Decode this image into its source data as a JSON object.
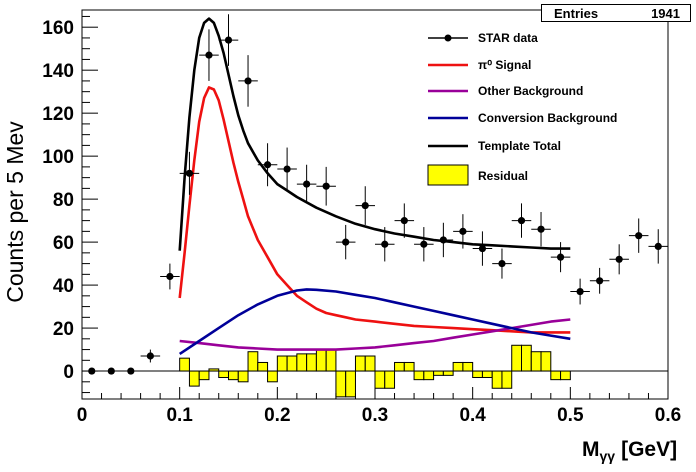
{
  "chart_data": {
    "type": "scatter",
    "title": "",
    "xlabel": "M",
    "xlabel_sub": "γγ",
    "xlabel_unit": "[GeV]",
    "ylabel": "Counts per 5 Mev",
    "xlim": [
      0,
      0.6
    ],
    "ylim": [
      -13,
      168
    ],
    "x_ticks": [
      0,
      0.1,
      0.2,
      0.3,
      0.4,
      0.5,
      0.6
    ],
    "x_tick_labels": [
      "0",
      "0.1",
      "0.2",
      "0.3",
      "0.4",
      "0.5",
      "0.6"
    ],
    "y_ticks": [
      0,
      20,
      40,
      60,
      80,
      100,
      120,
      140,
      160
    ],
    "y_tick_labels": [
      "0",
      "20",
      "40",
      "60",
      "80",
      "100",
      "120",
      "140",
      "160"
    ],
    "stats": {
      "label": "Entries",
      "value": "1941"
    },
    "legend_position": "top-right",
    "legend": [
      {
        "key": "data",
        "label": "STAR data"
      },
      {
        "key": "signal",
        "label": "π⁰ Signal"
      },
      {
        "key": "other",
        "label": "Other Background"
      },
      {
        "key": "conv",
        "label": "Conversion Background"
      },
      {
        "key": "total",
        "label": "Template Total"
      },
      {
        "key": "residual",
        "label": "Residual"
      }
    ],
    "colors": {
      "data": "#000000",
      "signal": "#ee1111",
      "other": "#990099",
      "conv": "#000099",
      "total": "#000000",
      "residual": "#ffff00"
    },
    "data_points": [
      {
        "x": 0.01,
        "y": 0,
        "err": 0
      },
      {
        "x": 0.03,
        "y": 0,
        "err": 0
      },
      {
        "x": 0.05,
        "y": 0,
        "err": 0
      },
      {
        "x": 0.07,
        "y": 7,
        "err": 3
      },
      {
        "x": 0.09,
        "y": 44,
        "err": 6
      },
      {
        "x": 0.11,
        "y": 92,
        "err": 10
      },
      {
        "x": 0.13,
        "y": 147,
        "err": 12
      },
      {
        "x": 0.15,
        "y": 154,
        "err": 12
      },
      {
        "x": 0.17,
        "y": 135,
        "err": 12
      },
      {
        "x": 0.19,
        "y": 96,
        "err": 10
      },
      {
        "x": 0.21,
        "y": 94,
        "err": 10
      },
      {
        "x": 0.23,
        "y": 87,
        "err": 9
      },
      {
        "x": 0.25,
        "y": 86,
        "err": 9
      },
      {
        "x": 0.27,
        "y": 60,
        "err": 8
      },
      {
        "x": 0.29,
        "y": 77,
        "err": 9
      },
      {
        "x": 0.31,
        "y": 59,
        "err": 8
      },
      {
        "x": 0.33,
        "y": 70,
        "err": 8
      },
      {
        "x": 0.35,
        "y": 59,
        "err": 8
      },
      {
        "x": 0.37,
        "y": 61,
        "err": 8
      },
      {
        "x": 0.39,
        "y": 65,
        "err": 8
      },
      {
        "x": 0.41,
        "y": 57,
        "err": 8
      },
      {
        "x": 0.43,
        "y": 50,
        "err": 7
      },
      {
        "x": 0.45,
        "y": 70,
        "err": 8
      },
      {
        "x": 0.47,
        "y": 66,
        "err": 8
      },
      {
        "x": 0.49,
        "y": 53,
        "err": 7
      },
      {
        "x": 0.51,
        "y": 37,
        "err": 6
      },
      {
        "x": 0.53,
        "y": 42,
        "err": 6
      },
      {
        "x": 0.55,
        "y": 52,
        "err": 7
      },
      {
        "x": 0.57,
        "y": 63,
        "err": 8
      },
      {
        "x": 0.59,
        "y": 58,
        "err": 8
      }
    ],
    "series": [
      {
        "key": "signal",
        "x": [
          0.1,
          0.105,
          0.11,
          0.115,
          0.12,
          0.125,
          0.13,
          0.135,
          0.14,
          0.145,
          0.15,
          0.155,
          0.16,
          0.165,
          0.17,
          0.18,
          0.19,
          0.2,
          0.21,
          0.22,
          0.23,
          0.24,
          0.25,
          0.26,
          0.27,
          0.28,
          0.3,
          0.32,
          0.34,
          0.36,
          0.38,
          0.4,
          0.42,
          0.44,
          0.46,
          0.48,
          0.5
        ],
        "y": [
          34,
          55,
          77,
          98,
          116,
          127,
          132,
          131,
          126,
          117,
          107,
          97,
          88,
          80,
          72,
          61,
          53,
          45,
          40,
          35,
          32,
          29,
          27,
          26,
          25,
          24,
          23,
          22,
          21,
          20.5,
          20,
          19.5,
          19,
          18.5,
          18,
          18,
          18
        ]
      },
      {
        "key": "other",
        "x": [
          0.1,
          0.12,
          0.14,
          0.16,
          0.18,
          0.2,
          0.22,
          0.24,
          0.26,
          0.28,
          0.3,
          0.32,
          0.34,
          0.36,
          0.38,
          0.4,
          0.42,
          0.44,
          0.46,
          0.48,
          0.5
        ],
        "y": [
          14,
          13,
          12,
          11,
          10.5,
          10,
          10,
          10,
          10,
          10.5,
          11,
          12,
          13,
          14,
          15.5,
          17,
          18.5,
          20,
          21.5,
          23,
          24
        ]
      },
      {
        "key": "conv",
        "x": [
          0.1,
          0.12,
          0.14,
          0.16,
          0.18,
          0.2,
          0.22,
          0.23,
          0.24,
          0.26,
          0.28,
          0.3,
          0.32,
          0.34,
          0.36,
          0.38,
          0.4,
          0.42,
          0.44,
          0.46,
          0.48,
          0.5
        ],
        "y": [
          8,
          14,
          20,
          26,
          31,
          35,
          37.5,
          38,
          37.8,
          37,
          35.5,
          34,
          32,
          30,
          28,
          26,
          24,
          22,
          20,
          18,
          16.5,
          15
        ]
      },
      {
        "key": "total",
        "x": [
          0.1,
          0.105,
          0.11,
          0.115,
          0.12,
          0.125,
          0.13,
          0.135,
          0.14,
          0.145,
          0.15,
          0.155,
          0.16,
          0.165,
          0.17,
          0.18,
          0.19,
          0.2,
          0.21,
          0.22,
          0.24,
          0.26,
          0.28,
          0.3,
          0.32,
          0.34,
          0.36,
          0.38,
          0.4,
          0.42,
          0.44,
          0.46,
          0.48,
          0.5
        ],
        "y": [
          56,
          90,
          118,
          140,
          155,
          162,
          164,
          162,
          156,
          148,
          138,
          128,
          119,
          112,
          106,
          98,
          92,
          87,
          84,
          81,
          76,
          72,
          68.5,
          66,
          64,
          62.5,
          61,
          60,
          59,
          58.5,
          58,
          57.5,
          57,
          57
        ]
      }
    ],
    "residual_bins": [
      {
        "x0": 0.1,
        "x1": 0.11,
        "y": 6
      },
      {
        "x0": 0.11,
        "x1": 0.12,
        "y": -7
      },
      {
        "x0": 0.12,
        "x1": 0.13,
        "y": -4
      },
      {
        "x0": 0.13,
        "x1": 0.14,
        "y": 1
      },
      {
        "x0": 0.14,
        "x1": 0.15,
        "y": -3
      },
      {
        "x0": 0.15,
        "x1": 0.16,
        "y": -4
      },
      {
        "x0": 0.16,
        "x1": 0.17,
        "y": -5
      },
      {
        "x0": 0.17,
        "x1": 0.18,
        "y": 9
      },
      {
        "x0": 0.18,
        "x1": 0.19,
        "y": 4
      },
      {
        "x0": 0.19,
        "x1": 0.2,
        "y": -5
      },
      {
        "x0": 0.2,
        "x1": 0.21,
        "y": 7
      },
      {
        "x0": 0.21,
        "x1": 0.22,
        "y": 7
      },
      {
        "x0": 0.22,
        "x1": 0.23,
        "y": 8
      },
      {
        "x0": 0.23,
        "x1": 0.24,
        "y": 8
      },
      {
        "x0": 0.24,
        "x1": 0.25,
        "y": 10
      },
      {
        "x0": 0.25,
        "x1": 0.26,
        "y": 10
      },
      {
        "x0": 0.26,
        "x1": 0.27,
        "y": -12
      },
      {
        "x0": 0.27,
        "x1": 0.28,
        "y": -12
      },
      {
        "x0": 0.28,
        "x1": 0.29,
        "y": 7
      },
      {
        "x0": 0.29,
        "x1": 0.3,
        "y": 7
      },
      {
        "x0": 0.3,
        "x1": 0.31,
        "y": -8
      },
      {
        "x0": 0.31,
        "x1": 0.32,
        "y": -8
      },
      {
        "x0": 0.32,
        "x1": 0.33,
        "y": 4
      },
      {
        "x0": 0.33,
        "x1": 0.34,
        "y": 4
      },
      {
        "x0": 0.34,
        "x1": 0.35,
        "y": -4
      },
      {
        "x0": 0.35,
        "x1": 0.36,
        "y": -4
      },
      {
        "x0": 0.36,
        "x1": 0.37,
        "y": -2
      },
      {
        "x0": 0.37,
        "x1": 0.38,
        "y": -2
      },
      {
        "x0": 0.38,
        "x1": 0.39,
        "y": 4
      },
      {
        "x0": 0.39,
        "x1": 0.4,
        "y": 4
      },
      {
        "x0": 0.4,
        "x1": 0.41,
        "y": -3
      },
      {
        "x0": 0.41,
        "x1": 0.42,
        "y": -3
      },
      {
        "x0": 0.42,
        "x1": 0.43,
        "y": -8
      },
      {
        "x0": 0.43,
        "x1": 0.44,
        "y": -8
      },
      {
        "x0": 0.44,
        "x1": 0.45,
        "y": 12
      },
      {
        "x0": 0.45,
        "x1": 0.46,
        "y": 12
      },
      {
        "x0": 0.46,
        "x1": 0.47,
        "y": 9
      },
      {
        "x0": 0.47,
        "x1": 0.48,
        "y": 9
      },
      {
        "x0": 0.48,
        "x1": 0.49,
        "y": -4
      },
      {
        "x0": 0.49,
        "x1": 0.5,
        "y": -4
      }
    ]
  }
}
